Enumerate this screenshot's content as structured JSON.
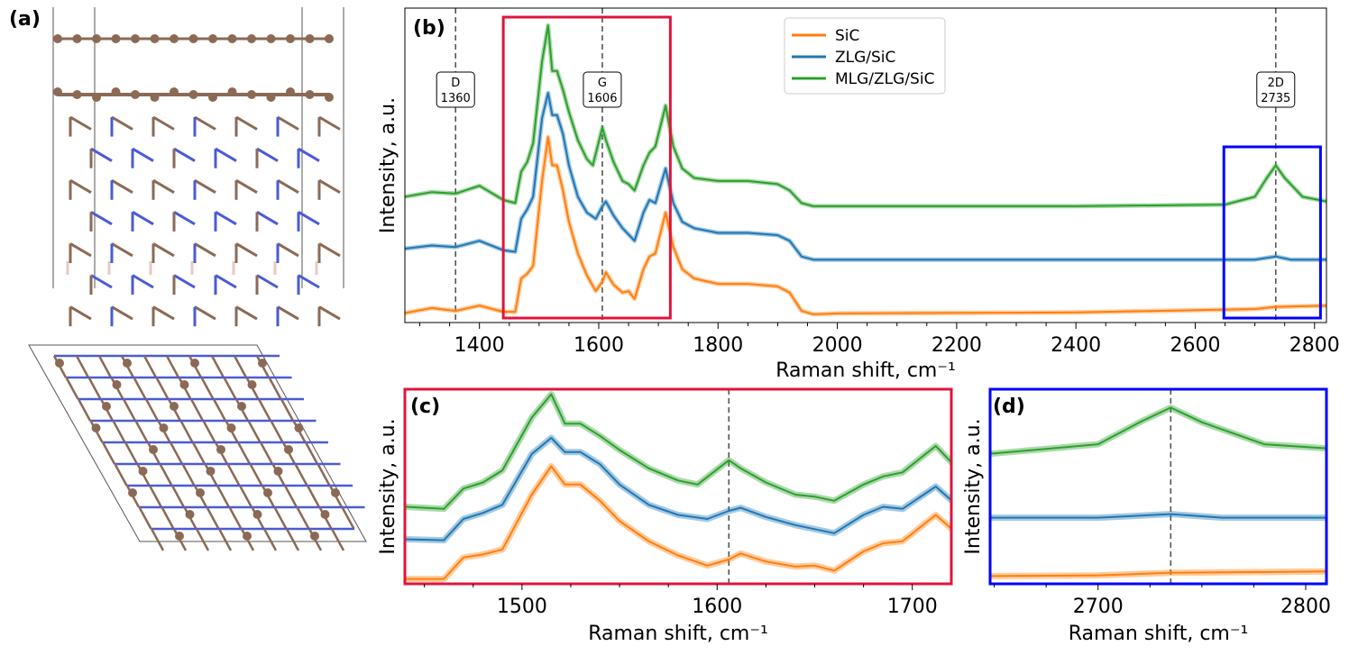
{
  "panel_labels": {
    "a": "(a)",
    "b": "(b)",
    "c": "(c)",
    "d": "(d)"
  },
  "colors": {
    "SiC": "#ff7f0e",
    "ZLG/SiC": "#1f77b4",
    "MLG/ZLG/SiC": "#2ca02c",
    "zoom_box_c": "#e0143c",
    "zoom_box_d": "#0000ff",
    "carbon": "#8b6a55",
    "silicon": "#4a5bd6"
  },
  "chart_data": [
    {
      "id": "b",
      "type": "line",
      "xlabel": "Raman shift, cm⁻¹",
      "ylabel": "Intensity, a.u.",
      "xlim": [
        1275,
        2820
      ],
      "ylim": [
        0,
        1
      ],
      "xticks": [
        1400,
        1600,
        1800,
        2000,
        2200,
        2400,
        2600,
        2800
      ],
      "legend": {
        "placement": "top-center",
        "entries": [
          "SiC",
          "ZLG/SiC",
          "MLG/ZLG/SiC"
        ]
      },
      "vlines": [
        {
          "x": 1360,
          "label": "D",
          "value": "1360"
        },
        {
          "x": 1606,
          "label": "G",
          "value": "1606"
        },
        {
          "x": 2735,
          "label": "2D",
          "value": "2735"
        }
      ],
      "zoom_regions": [
        {
          "panel": "c",
          "x": [
            1440,
            1720
          ]
        },
        {
          "panel": "d",
          "x": [
            2648,
            2810
          ]
        }
      ]
    },
    {
      "id": "c",
      "type": "line",
      "xlabel": "Raman shift, cm⁻¹",
      "ylabel": "Intensity, a.u.",
      "xlim": [
        1440,
        1720
      ],
      "ylim": [
        0.01,
        0.97
      ],
      "xticks": [
        1500,
        1600,
        1700
      ],
      "vlines": [
        {
          "x": 1606
        }
      ]
    },
    {
      "id": "d",
      "type": "line",
      "xlabel": "Raman shift, cm⁻¹",
      "ylabel": "Intensity, a.u.",
      "xlim": [
        2648,
        2810
      ],
      "ylim": [
        0.02,
        0.55
      ],
      "xticks": [
        2700,
        2800
      ],
      "vlines": [
        {
          "x": 2735
        }
      ]
    }
  ],
  "series": [
    {
      "name": "SiC",
      "points": [
        [
          1275,
          0.03
        ],
        [
          1320,
          0.046
        ],
        [
          1360,
          0.037
        ],
        [
          1400,
          0.054
        ],
        [
          1440,
          0.034
        ],
        [
          1460,
          0.034
        ],
        [
          1470,
          0.14
        ],
        [
          1480,
          0.155
        ],
        [
          1490,
          0.18
        ],
        [
          1505,
          0.45
        ],
        [
          1515,
          0.59
        ],
        [
          1522,
          0.5
        ],
        [
          1530,
          0.5
        ],
        [
          1540,
          0.42
        ],
        [
          1550,
          0.32
        ],
        [
          1565,
          0.22
        ],
        [
          1580,
          0.15
        ],
        [
          1595,
          0.1
        ],
        [
          1606,
          0.13
        ],
        [
          1612,
          0.16
        ],
        [
          1625,
          0.12
        ],
        [
          1640,
          0.095
        ],
        [
          1650,
          0.1
        ],
        [
          1660,
          0.075
        ],
        [
          1675,
          0.17
        ],
        [
          1685,
          0.21
        ],
        [
          1695,
          0.22
        ],
        [
          1712,
          0.35
        ],
        [
          1725,
          0.24
        ],
        [
          1740,
          0.17
        ],
        [
          1760,
          0.14
        ],
        [
          1800,
          0.123
        ],
        [
          1850,
          0.123
        ],
        [
          1900,
          0.115
        ],
        [
          1920,
          0.095
        ],
        [
          1940,
          0.037
        ],
        [
          1960,
          0.026
        ],
        [
          2000,
          0.029
        ],
        [
          2400,
          0.032
        ],
        [
          2700,
          0.043
        ],
        [
          2735,
          0.05
        ],
        [
          2820,
          0.054
        ]
      ]
    },
    {
      "name": "ZLG/SiC",
      "points": [
        [
          1275,
          0.235
        ],
        [
          1320,
          0.245
        ],
        [
          1360,
          0.24
        ],
        [
          1400,
          0.26
        ],
        [
          1440,
          0.23
        ],
        [
          1460,
          0.225
        ],
        [
          1470,
          0.33
        ],
        [
          1480,
          0.36
        ],
        [
          1490,
          0.4
        ],
        [
          1505,
          0.65
        ],
        [
          1515,
          0.73
        ],
        [
          1522,
          0.66
        ],
        [
          1530,
          0.66
        ],
        [
          1540,
          0.6
        ],
        [
          1550,
          0.5
        ],
        [
          1565,
          0.4
        ],
        [
          1580,
          0.35
        ],
        [
          1595,
          0.33
        ],
        [
          1606,
          0.37
        ],
        [
          1612,
          0.385
        ],
        [
          1625,
          0.34
        ],
        [
          1640,
          0.3
        ],
        [
          1650,
          0.28
        ],
        [
          1660,
          0.26
        ],
        [
          1675,
          0.35
        ],
        [
          1685,
          0.39
        ],
        [
          1695,
          0.38
        ],
        [
          1712,
          0.49
        ],
        [
          1725,
          0.38
        ],
        [
          1740,
          0.32
        ],
        [
          1760,
          0.3
        ],
        [
          1800,
          0.285
        ],
        [
          1850,
          0.285
        ],
        [
          1900,
          0.278
        ],
        [
          1920,
          0.26
        ],
        [
          1940,
          0.21
        ],
        [
          1960,
          0.2
        ],
        [
          2000,
          0.2
        ],
        [
          2400,
          0.2
        ],
        [
          2700,
          0.2
        ],
        [
          2735,
          0.21
        ],
        [
          2760,
          0.2
        ],
        [
          2820,
          0.2
        ]
      ]
    },
    {
      "name": "MLG/ZLG/SiC",
      "points": [
        [
          1275,
          0.4
        ],
        [
          1320,
          0.415
        ],
        [
          1360,
          0.41
        ],
        [
          1400,
          0.435
        ],
        [
          1440,
          0.39
        ],
        [
          1460,
          0.38
        ],
        [
          1470,
          0.48
        ],
        [
          1480,
          0.51
        ],
        [
          1490,
          0.57
        ],
        [
          1505,
          0.83
        ],
        [
          1515,
          0.945
        ],
        [
          1522,
          0.8
        ],
        [
          1530,
          0.8
        ],
        [
          1540,
          0.74
        ],
        [
          1550,
          0.67
        ],
        [
          1565,
          0.58
        ],
        [
          1580,
          0.52
        ],
        [
          1590,
          0.5
        ],
        [
          1606,
          0.62
        ],
        [
          1612,
          0.58
        ],
        [
          1625,
          0.51
        ],
        [
          1640,
          0.45
        ],
        [
          1650,
          0.44
        ],
        [
          1660,
          0.42
        ],
        [
          1675,
          0.5
        ],
        [
          1685,
          0.54
        ],
        [
          1695,
          0.56
        ],
        [
          1712,
          0.69
        ],
        [
          1725,
          0.56
        ],
        [
          1740,
          0.49
        ],
        [
          1760,
          0.46
        ],
        [
          1800,
          0.45
        ],
        [
          1850,
          0.45
        ],
        [
          1900,
          0.44
        ],
        [
          1920,
          0.42
        ],
        [
          1940,
          0.38
        ],
        [
          1960,
          0.37
        ],
        [
          2000,
          0.37
        ],
        [
          2400,
          0.37
        ],
        [
          2650,
          0.375
        ],
        [
          2700,
          0.4
        ],
        [
          2720,
          0.46
        ],
        [
          2735,
          0.5
        ],
        [
          2750,
          0.46
        ],
        [
          2780,
          0.4
        ],
        [
          2820,
          0.385
        ]
      ]
    }
  ]
}
